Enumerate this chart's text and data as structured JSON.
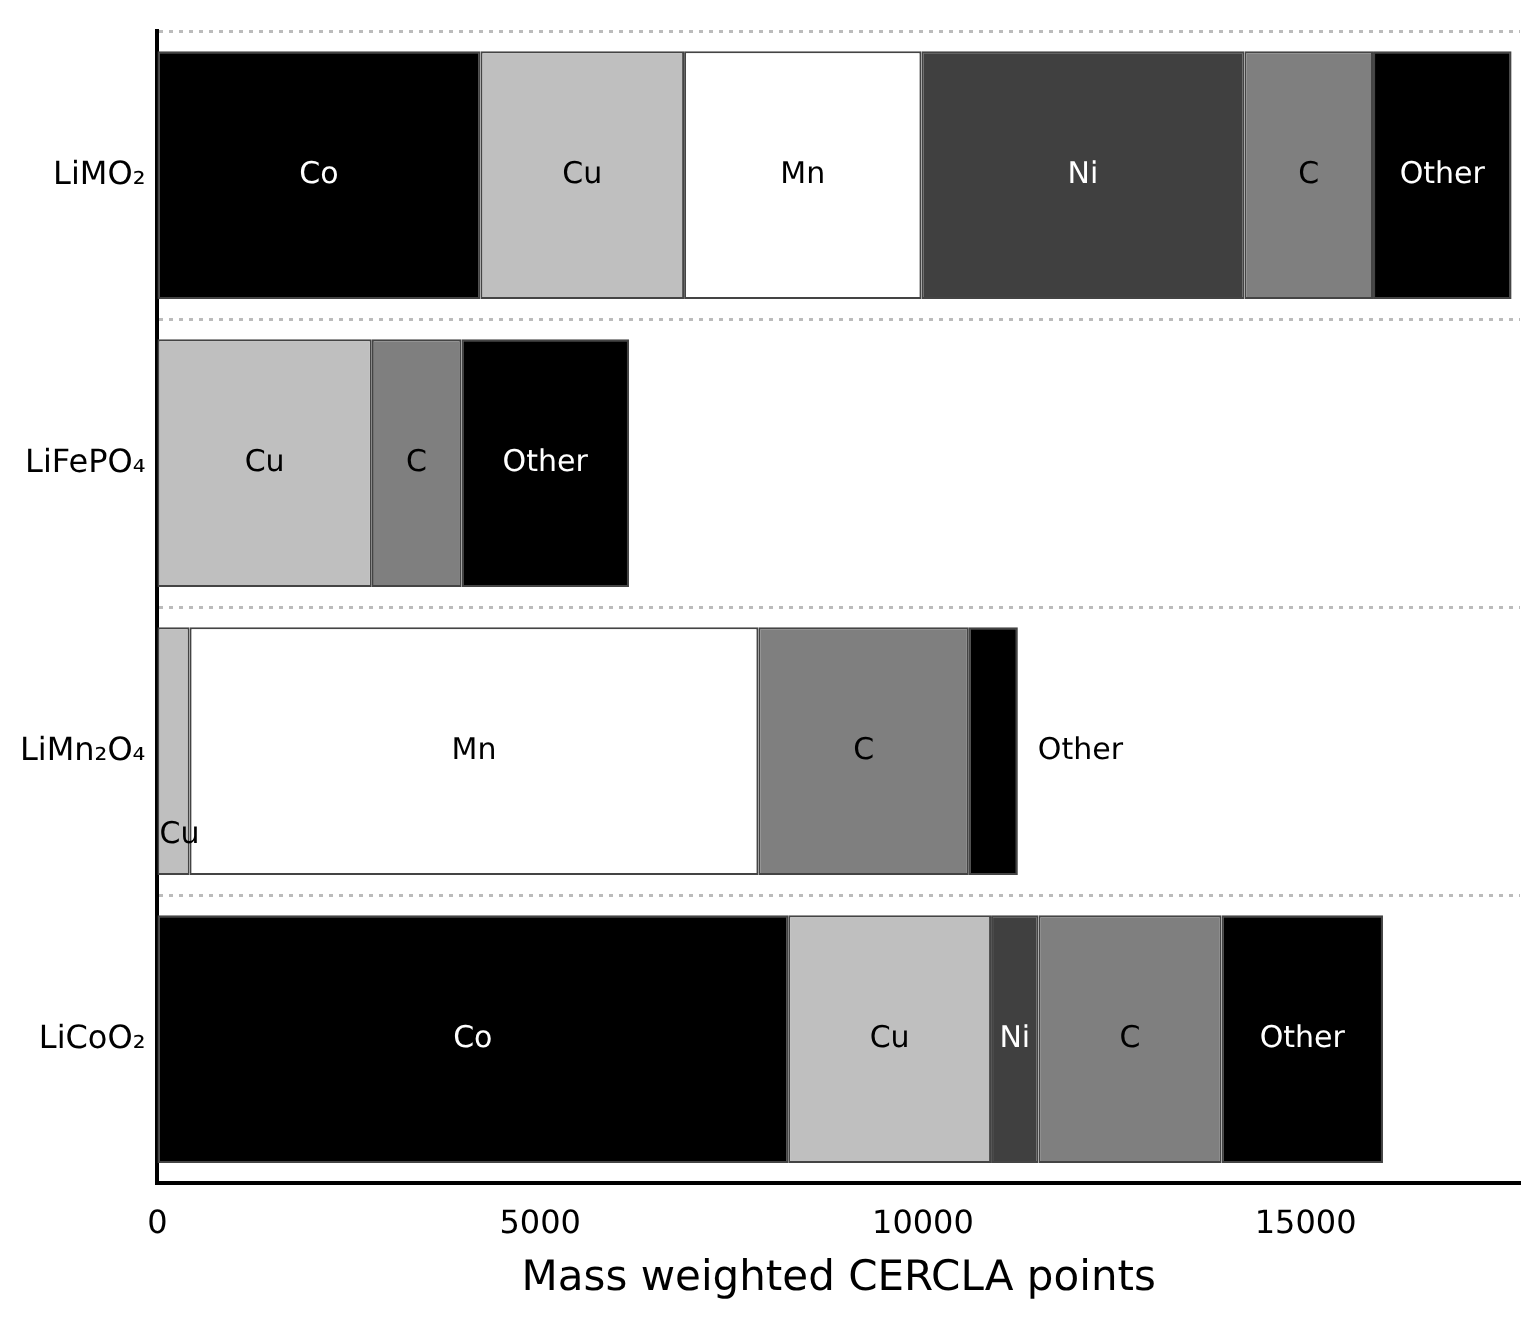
{
  "chart_data": {
    "type": "bar",
    "orientation": "horizontal",
    "stacked": true,
    "xlabel": "Mass weighted CERCLA points",
    "categories": [
      "LiMO₂",
      "LiFePO₄",
      "LiMn₂O₄",
      "LiCoO₂"
    ],
    "series": [
      {
        "name": "Co",
        "color": "#000000",
        "values": [
          4220,
          null,
          null,
          8240
        ]
      },
      {
        "name": "Cu",
        "color": "#bfbfbf",
        "values": [
          2660,
          2800,
          420,
          2650
        ]
      },
      {
        "name": "Mn",
        "color": "#ffffff",
        "values": [
          3100,
          null,
          7430,
          null
        ]
      },
      {
        "name": "Ni",
        "color": "#404040",
        "values": [
          4220,
          null,
          null,
          620
        ]
      },
      {
        "name": "C",
        "color": "#7f7f7f",
        "values": [
          1680,
          1170,
          2750,
          2390
        ]
      },
      {
        "name": "Other",
        "color": "#000000",
        "values": [
          1810,
          2190,
          640,
          2110
        ]
      }
    ],
    "xlim": [
      0,
      17800
    ],
    "xticks": [
      0,
      5000,
      10000,
      15000
    ],
    "grid": "y",
    "legend": false
  }
}
